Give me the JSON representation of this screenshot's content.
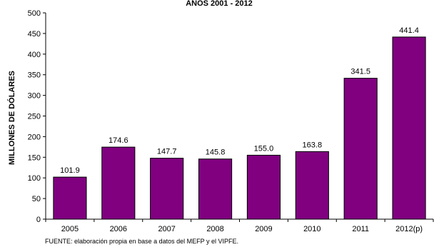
{
  "chart_data": {
    "type": "bar",
    "title": "AÑOS 2001 - 2012",
    "ylabel": "MILLONES DE DÓLARES",
    "xlabel": "",
    "categories": [
      "2005",
      "2006",
      "2007",
      "2008",
      "2009",
      "2010",
      "2011",
      "2012(p)"
    ],
    "values": [
      101.9,
      174.6,
      147.7,
      145.8,
      155.0,
      163.8,
      341.5,
      441.4
    ],
    "value_labels": [
      "101.9",
      "174.6",
      "147.7",
      "145.8",
      "155.0",
      "163.8",
      "341.5",
      "441.4"
    ],
    "ylim": [
      0,
      500
    ],
    "yticks": [
      "0",
      "50",
      "100",
      "150",
      "200",
      "250",
      "300",
      "350",
      "400",
      "450",
      "500"
    ],
    "grid": false,
    "legend": "none",
    "bar_color": "#800080",
    "source": "FUENTE: elaboración propia en base a datos del MEFP y el VIPFE."
  }
}
